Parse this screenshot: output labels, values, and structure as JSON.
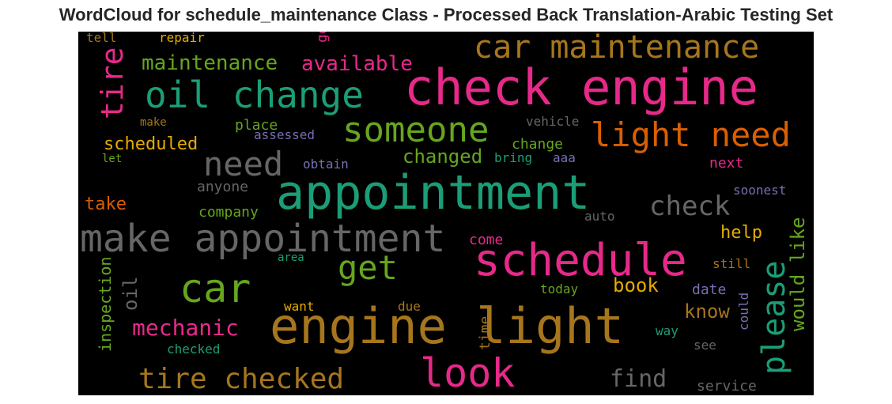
{
  "title": "WordCloud for schedule_maintenance Class - Processed Back Translation-Arabic Testing Set",
  "palette": {
    "pink": "#e7298a",
    "green": "#1b9e77",
    "olive": "#66a61e",
    "orange": "#d95f02",
    "gold": "#e6ab02",
    "brown": "#a6761d",
    "gray": "#666666",
    "purple": "#7570b3"
  },
  "words": [
    {
      "text": "check engine",
      "color": "pink"
    },
    {
      "text": "appointment",
      "color": "green"
    },
    {
      "text": "make appointment",
      "color": "gray"
    },
    {
      "text": "engine light",
      "color": "brown"
    },
    {
      "text": "schedule",
      "color": "pink"
    },
    {
      "text": "oil change",
      "color": "green"
    },
    {
      "text": "car maintenance",
      "color": "brown"
    },
    {
      "text": "someone",
      "color": "olive"
    },
    {
      "text": "light need",
      "color": "orange"
    },
    {
      "text": "car",
      "color": "olive"
    },
    {
      "text": "look",
      "color": "pink"
    },
    {
      "text": "tire checked",
      "color": "brown"
    },
    {
      "text": "need",
      "color": "gray"
    },
    {
      "text": "get",
      "color": "olive"
    },
    {
      "text": "check",
      "color": "gray"
    },
    {
      "text": "please",
      "color": "green"
    },
    {
      "text": "mechanic",
      "color": "pink"
    },
    {
      "text": "tire",
      "color": "pink"
    },
    {
      "text": "maintenance",
      "color": "olive"
    },
    {
      "text": "available",
      "color": "pink"
    },
    {
      "text": "scheduled",
      "color": "gold"
    },
    {
      "text": "changed",
      "color": "olive"
    },
    {
      "text": "would like",
      "color": "olive"
    },
    {
      "text": "find",
      "color": "gray"
    },
    {
      "text": "oil",
      "color": "gray"
    },
    {
      "text": "book",
      "color": "gold"
    },
    {
      "text": "know",
      "color": "brown"
    },
    {
      "text": "help",
      "color": "gold"
    },
    {
      "text": "inspection",
      "color": "olive"
    },
    {
      "text": "take",
      "color": "orange"
    },
    {
      "text": "place",
      "color": "olive"
    },
    {
      "text": "change",
      "color": "olive"
    },
    {
      "text": "company",
      "color": "olive"
    },
    {
      "text": "anyone",
      "color": "gray"
    },
    {
      "text": "next",
      "color": "pink"
    },
    {
      "text": "date",
      "color": "purple"
    },
    {
      "text": "service",
      "color": "gray"
    },
    {
      "text": "time",
      "color": "brown"
    },
    {
      "text": "come",
      "color": "pink"
    },
    {
      "text": "go",
      "color": "pink"
    },
    {
      "text": "soonest",
      "color": "purple"
    },
    {
      "text": "could",
      "color": "purple"
    },
    {
      "text": "vehicle",
      "color": "gray"
    },
    {
      "text": "assessed",
      "color": "purple"
    },
    {
      "text": "obtain",
      "color": "purple"
    },
    {
      "text": "bring",
      "color": "green"
    },
    {
      "text": "aaa",
      "color": "purple"
    },
    {
      "text": "auto",
      "color": "gray"
    },
    {
      "text": "area",
      "color": "green"
    },
    {
      "text": "still",
      "color": "brown"
    },
    {
      "text": "today",
      "color": "olive"
    },
    {
      "text": "want",
      "color": "gold"
    },
    {
      "text": "due",
      "color": "brown"
    },
    {
      "text": "way",
      "color": "green"
    },
    {
      "text": "see",
      "color": "gray"
    },
    {
      "text": "checked",
      "color": "green"
    },
    {
      "text": "tell",
      "color": "brown"
    },
    {
      "text": "repair",
      "color": "gold"
    },
    {
      "text": "make",
      "color": "brown"
    },
    {
      "text": "let",
      "color": "olive"
    }
  ]
}
